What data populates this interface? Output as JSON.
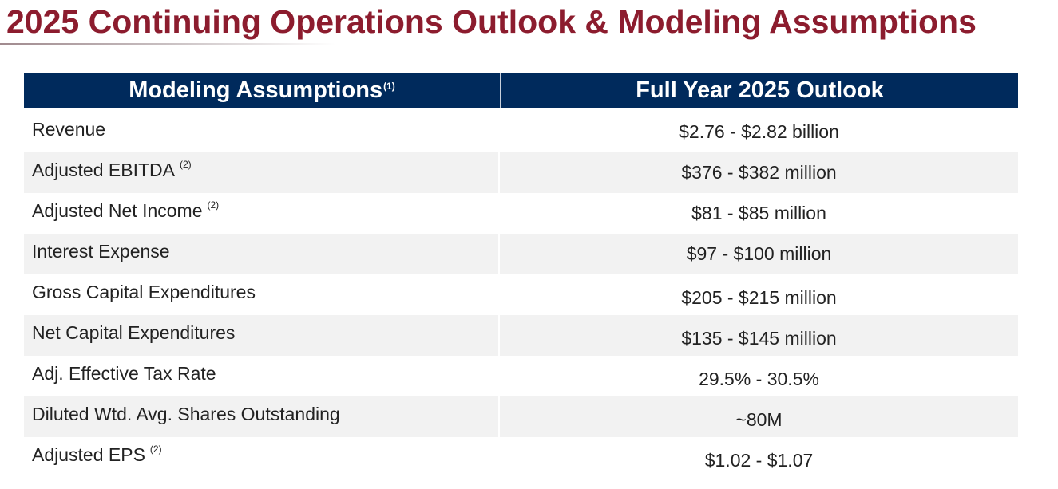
{
  "title": "2025 Continuing Operations Outlook & Modeling Assumptions",
  "table": {
    "headers": {
      "assumptions": "Modeling Assumptions",
      "assumptions_note": "(1)",
      "outlook": "Full Year 2025 Outlook"
    },
    "rows": [
      {
        "label": "Revenue",
        "note": "",
        "value": "$2.76 - $2.82 billion"
      },
      {
        "label": "Adjusted EBITDA",
        "note": "(2)",
        "value": "$376 - $382 million"
      },
      {
        "label": "Adjusted Net Income",
        "note": "(2)",
        "value": "$81 - $85 million"
      },
      {
        "label": "Interest Expense",
        "note": "",
        "value": "$97 - $100 million"
      },
      {
        "label": "Gross Capital Expenditures",
        "note": "",
        "value": "$205 - $215 million"
      },
      {
        "label": "Net Capital Expenditures",
        "note": "",
        "value": "$135 - $145 million"
      },
      {
        "label": "Adj. Effective Tax Rate",
        "note": "",
        "value": "29.5% - 30.5%"
      },
      {
        "label": "Diluted Wtd. Avg. Shares Outstanding",
        "note": "",
        "value": "~80M"
      },
      {
        "label": "Adjusted EPS",
        "note": "(2)",
        "value": "$1.02 - $1.07"
      }
    ]
  },
  "colors": {
    "title": "#8c1c2e",
    "header_bg": "#002a5c",
    "alt_row": "#f2f2f2"
  }
}
